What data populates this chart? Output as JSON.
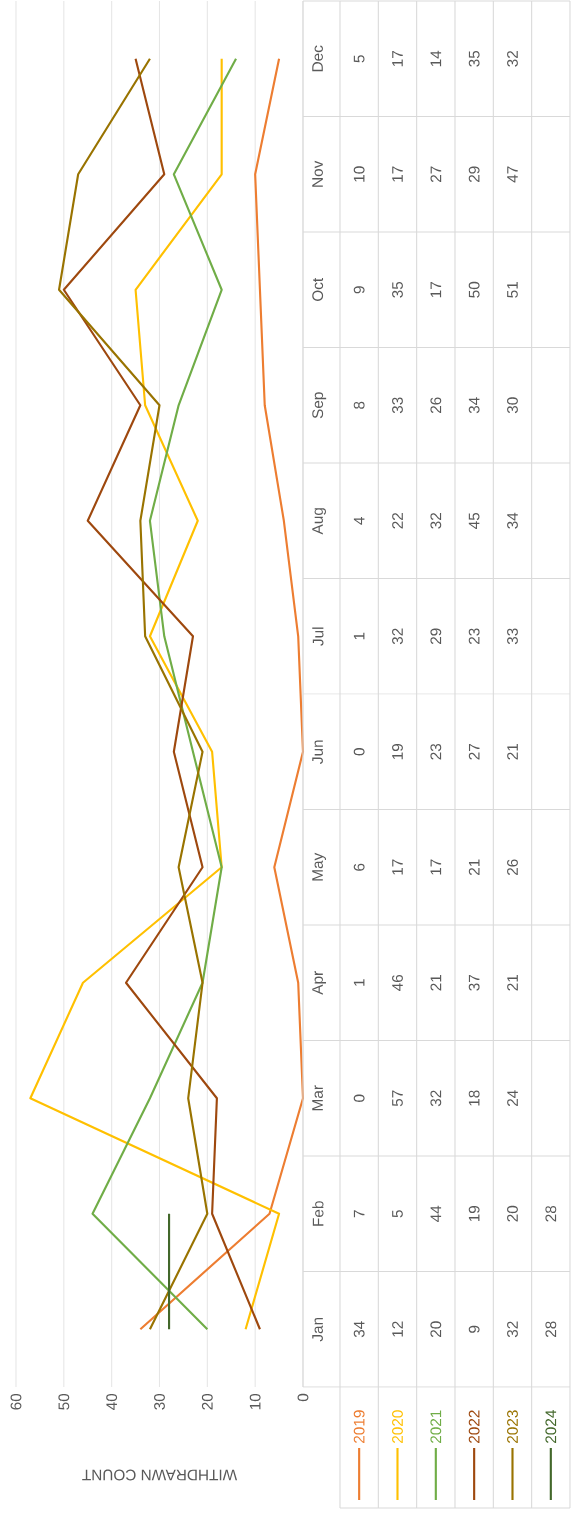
{
  "chart_data": {
    "type": "line",
    "orientation": "horizontal",
    "xlabel": "WITHDRAWN COUNT",
    "categories": [
      "Dec",
      "Nov",
      "Oct",
      "Sep",
      "Aug",
      "Jul",
      "Jun",
      "May",
      "Apr",
      "Mar",
      "Feb",
      "Jan"
    ],
    "series": [
      {
        "name": "2019",
        "color": "#ed7d31",
        "values": [
          5,
          10,
          9,
          8,
          4,
          1,
          0,
          6,
          1,
          0,
          7,
          34
        ]
      },
      {
        "name": "2020",
        "color": "#ffc000",
        "values": [
          17,
          17,
          35,
          33,
          22,
          32,
          19,
          17,
          46,
          57,
          5,
          12
        ]
      },
      {
        "name": "2021",
        "color": "#70ad47",
        "values": [
          14,
          27,
          17,
          26,
          32,
          29,
          23,
          17,
          21,
          32,
          44,
          20
        ]
      },
      {
        "name": "2022",
        "color": "#9e480e",
        "values": [
          35,
          29,
          50,
          34,
          45,
          23,
          27,
          21,
          37,
          18,
          19,
          9
        ]
      },
      {
        "name": "2023",
        "color": "#997300",
        "values": [
          32,
          47,
          51,
          30,
          34,
          33,
          21,
          26,
          21,
          24,
          20,
          32
        ]
      },
      {
        "name": "2024",
        "color": "#43682b",
        "values": [
          null,
          null,
          null,
          null,
          null,
          null,
          null,
          null,
          null,
          null,
          28,
          28
        ]
      }
    ],
    "xlim": [
      60,
      0
    ],
    "xticks": [
      0,
      10,
      20,
      30,
      40,
      50,
      60
    ],
    "grid": "x",
    "legend": "bottom",
    "data_labels": true
  }
}
